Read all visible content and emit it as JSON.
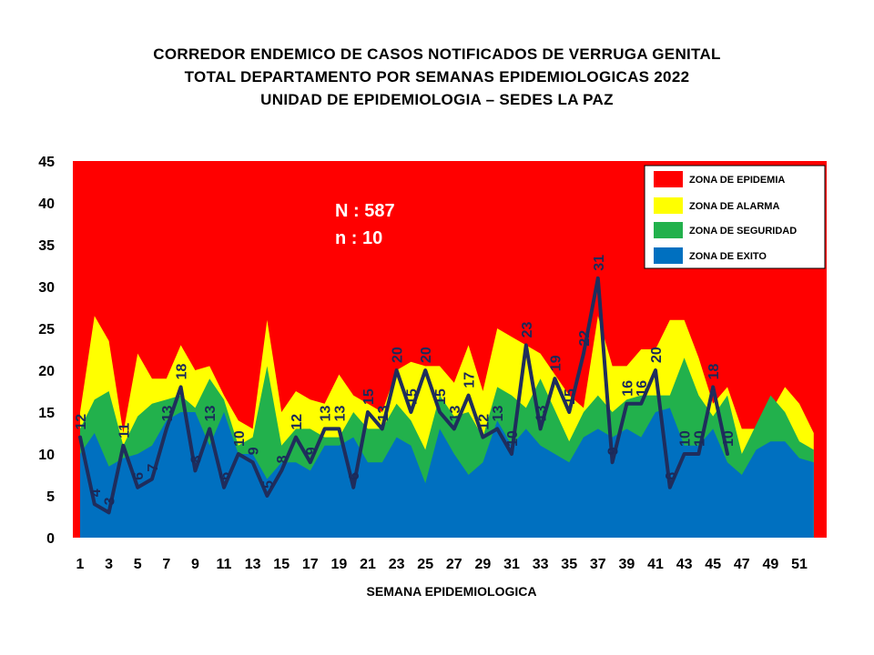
{
  "title_lines": [
    "CORREDOR ENDEMICO  DE CASOS NOTIFICADOS  DE VERRUGA GENITAL",
    "TOTAL DEPARTAMENTO  POR SEMANAS EPIDEMIOLOGICAS  2022",
    "UNIDAD  DE EPIDEMIOLOGIA  – SEDES LA PAZ"
  ],
  "annotation": {
    "N": "N : 587",
    "n": "n :   10"
  },
  "chart_data": {
    "type": "area",
    "xlabel": "SEMANA EPIDEMIOLOGICA",
    "ylabel": "",
    "xlim": [
      1,
      52
    ],
    "ylim": [
      0,
      45
    ],
    "yticks": [
      0,
      5,
      10,
      15,
      20,
      25,
      30,
      35,
      40,
      45
    ],
    "xticks": [
      1,
      3,
      5,
      7,
      9,
      11,
      13,
      15,
      17,
      19,
      21,
      23,
      25,
      27,
      29,
      31,
      33,
      35,
      37,
      39,
      41,
      43,
      45,
      47,
      49,
      51
    ],
    "legend_position": "top-right",
    "colors": {
      "epidemia": "#ff0000",
      "alarma": "#ffff00",
      "seguridad": "#22b14c",
      "exito": "#0070c0",
      "line": "#1f2d5c"
    },
    "legend": [
      "ZONA DE EPIDEMIA",
      "ZONA DE ALARMA",
      "ZONA DE  SEGURIDAD",
      "ZONA DE  EXITO"
    ],
    "weeks": [
      1,
      2,
      3,
      4,
      5,
      6,
      7,
      8,
      9,
      10,
      11,
      12,
      13,
      14,
      15,
      16,
      17,
      18,
      19,
      20,
      21,
      22,
      23,
      24,
      25,
      26,
      27,
      28,
      29,
      30,
      31,
      32,
      33,
      35,
      36,
      37,
      38,
      39,
      40,
      41,
      42,
      43,
      44,
      45,
      46,
      47,
      48,
      49,
      50,
      51,
      52
    ],
    "exito": [
      10,
      12.5,
      8.5,
      9.5,
      10,
      11,
      14,
      15,
      15,
      11,
      15,
      10,
      10,
      7,
      9,
      9,
      8,
      11,
      11,
      12,
      9,
      9,
      12,
      11,
      6.5,
      13,
      10,
      7.5,
      9,
      14,
      11,
      13,
      11,
      9,
      12,
      13,
      12,
      13,
      12,
      15,
      15.5,
      11,
      11,
      13,
      9,
      7.5,
      10.5,
      11.5,
      11.5,
      9.5,
      9
    ],
    "seguridad": [
      13,
      16.5,
      17.5,
      11,
      14.5,
      16,
      16.5,
      17,
      15.5,
      19,
      16.5,
      11,
      12,
      20.5,
      11,
      13,
      13,
      12,
      12,
      15,
      13,
      13,
      16,
      14,
      10.5,
      17,
      14.5,
      15,
      12,
      18,
      17,
      15.5,
      19,
      11.5,
      15,
      17,
      15,
      16.5,
      17,
      17,
      17,
      21.5,
      17,
      14.5,
      17,
      10,
      13.5,
      17,
      15,
      11.5,
      10.5
    ],
    "alarma": [
      15,
      26.5,
      23.5,
      12.5,
      22,
      19,
      19,
      23,
      20,
      20.5,
      17,
      14,
      13,
      26,
      15,
      17.5,
      16.5,
      16,
      19.5,
      17,
      16,
      15,
      20,
      21,
      20.5,
      20.5,
      18.5,
      23,
      17.5,
      25,
      24,
      23,
      22,
      17,
      15.5,
      26.5,
      20.5,
      20.5,
      22.5,
      22.5,
      26,
      26,
      21.5,
      16,
      18,
      13,
      13,
      15,
      18,
      16,
      12.5
    ],
    "series": [
      {
        "name": "",
        "x": [
          1,
          2,
          3,
          4,
          5,
          6,
          7,
          8,
          9,
          10,
          11,
          12,
          13,
          14,
          15,
          16,
          17,
          18,
          19,
          20,
          21,
          22,
          23,
          24,
          25,
          26,
          27,
          28,
          29,
          30,
          31,
          32,
          33,
          34,
          35,
          36,
          37,
          38,
          39,
          40,
          41,
          42,
          43,
          44,
          45,
          46
        ],
        "values": [
          12,
          4,
          3,
          11,
          6,
          7,
          13,
          18,
          8,
          13,
          6,
          10,
          9,
          5,
          8,
          12,
          9,
          13,
          13,
          6,
          15,
          13,
          20,
          15,
          20,
          15,
          13,
          17,
          12,
          13,
          10,
          23,
          13,
          19,
          15,
          22,
          31,
          9,
          16,
          16,
          20,
          6,
          10,
          10,
          18,
          10
        ]
      }
    ]
  }
}
